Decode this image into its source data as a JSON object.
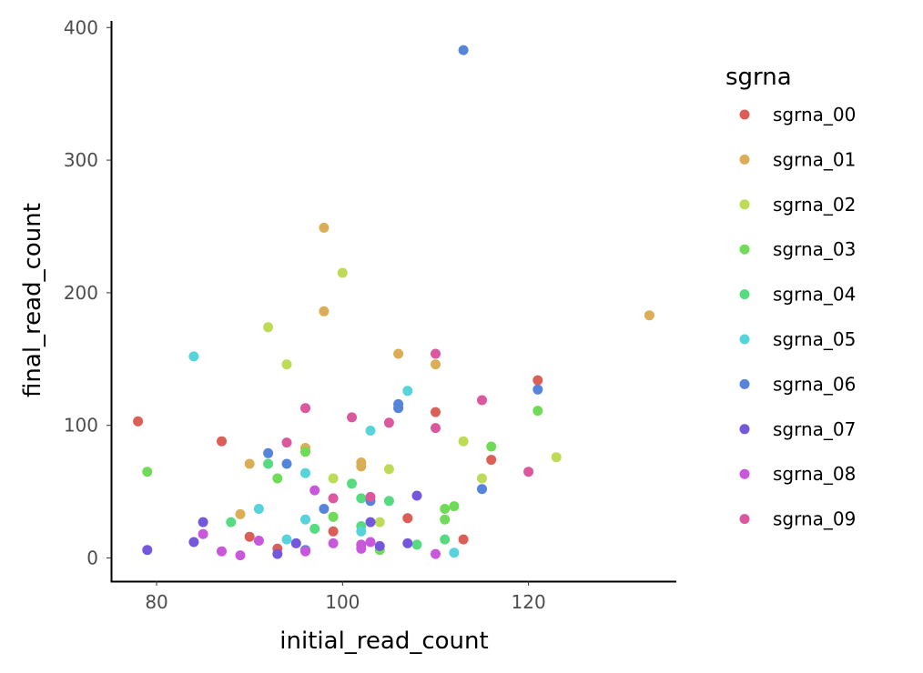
{
  "chart_data": {
    "type": "scatter",
    "xlabel": "initial_read_count",
    "ylabel": "final_read_count",
    "xlim": [
      75.1,
      135.9
    ],
    "ylim": [
      -17.5,
      405
    ],
    "x_ticks": [
      80,
      100,
      120
    ],
    "y_ticks": [
      0,
      100,
      200,
      300,
      400
    ],
    "grid": false,
    "legend": {
      "title": "sgrna",
      "placement": "right"
    },
    "series": [
      {
        "name": "sgrna_00",
        "color": "#db5f57",
        "points": [
          [
            78,
            103
          ],
          [
            87,
            88
          ],
          [
            90,
            16
          ],
          [
            93,
            7
          ],
          [
            99,
            20
          ],
          [
            107,
            30
          ],
          [
            110,
            110
          ],
          [
            113,
            14
          ],
          [
            116,
            74
          ],
          [
            121,
            134
          ]
        ]
      },
      {
        "name": "sgrna_01",
        "color": "#dbad57",
        "points": [
          [
            89,
            33
          ],
          [
            90,
            71
          ],
          [
            96,
            83
          ],
          [
            98,
            249
          ],
          [
            98,
            186
          ],
          [
            102,
            72
          ],
          [
            102,
            69
          ],
          [
            106,
            154
          ],
          [
            110,
            146
          ],
          [
            133,
            183
          ]
        ]
      },
      {
        "name": "sgrna_02",
        "color": "#bedb57",
        "points": [
          [
            92,
            174
          ],
          [
            94,
            146
          ],
          [
            99,
            60
          ],
          [
            100,
            215
          ],
          [
            104,
            27
          ],
          [
            105,
            67
          ],
          [
            113,
            88
          ],
          [
            115,
            60
          ],
          [
            123,
            76
          ]
        ]
      },
      {
        "name": "sgrna_03",
        "color": "#6fdb57",
        "points": [
          [
            79,
            65
          ],
          [
            93,
            60
          ],
          [
            96,
            80
          ],
          [
            99,
            31
          ],
          [
            104,
            6
          ],
          [
            111,
            37
          ],
          [
            111,
            29
          ],
          [
            112,
            39
          ],
          [
            116,
            84
          ],
          [
            121,
            111
          ]
        ]
      },
      {
        "name": "sgrna_04",
        "color": "#57db80",
        "points": [
          [
            88,
            27
          ],
          [
            92,
            71
          ],
          [
            97,
            22
          ],
          [
            101,
            56
          ],
          [
            102,
            45
          ],
          [
            102,
            24
          ],
          [
            105,
            43
          ],
          [
            108,
            10
          ],
          [
            111,
            14
          ]
        ]
      },
      {
        "name": "sgrna_05",
        "color": "#57d3db",
        "points": [
          [
            84,
            152
          ],
          [
            91,
            37
          ],
          [
            94,
            14
          ],
          [
            96,
            64
          ],
          [
            96,
            29
          ],
          [
            102,
            20
          ],
          [
            103,
            96
          ],
          [
            107,
            126
          ],
          [
            112,
            4
          ]
        ]
      },
      {
        "name": "sgrna_06",
        "color": "#5784db",
        "points": [
          [
            92,
            79
          ],
          [
            94,
            71
          ],
          [
            96,
            6
          ],
          [
            98,
            37
          ],
          [
            103,
            43
          ],
          [
            106,
            116
          ],
          [
            106,
            113
          ],
          [
            113,
            383
          ],
          [
            115,
            52
          ],
          [
            121,
            127
          ]
        ]
      },
      {
        "name": "sgrna_07",
        "color": "#7457db",
        "points": [
          [
            79,
            6
          ],
          [
            84,
            12
          ],
          [
            85,
            27
          ],
          [
            93,
            3
          ],
          [
            95,
            11
          ],
          [
            103,
            27
          ],
          [
            104,
            9
          ],
          [
            107,
            11
          ],
          [
            108,
            47
          ]
        ]
      },
      {
        "name": "sgrna_08",
        "color": "#c957db",
        "points": [
          [
            85,
            18
          ],
          [
            87,
            5
          ],
          [
            89,
            2
          ],
          [
            91,
            13
          ],
          [
            96,
            5
          ],
          [
            97,
            51
          ],
          [
            99,
            11
          ],
          [
            102,
            10
          ],
          [
            102,
            7
          ],
          [
            103,
            12
          ],
          [
            110,
            3
          ]
        ]
      },
      {
        "name": "sgrna_09",
        "color": "#db579e",
        "points": [
          [
            94,
            87
          ],
          [
            96,
            113
          ],
          [
            99,
            45
          ],
          [
            101,
            106
          ],
          [
            103,
            46
          ],
          [
            105,
            102
          ],
          [
            110,
            154
          ],
          [
            110,
            98
          ],
          [
            115,
            119
          ],
          [
            120,
            65
          ]
        ]
      }
    ]
  }
}
